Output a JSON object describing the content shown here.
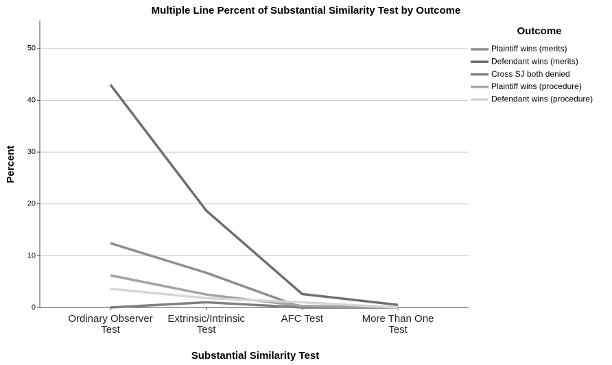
{
  "chart_data": {
    "type": "line",
    "title": "Multiple Line Percent of Substantial Similarity Test by Outcome",
    "x_label": "Substantial Similarity Test",
    "y_label": "Percent",
    "categories": [
      "Ordinary Observer Test",
      "Extrinsic/Intrinsic Test",
      "AFC Test",
      "More Than One Test"
    ],
    "series": [
      {
        "name": "Plaintiff wins (merits)",
        "color": "#8e8e8e",
        "values": [
          12.4,
          6.7,
          0,
          0
        ]
      },
      {
        "name": "Defendant wins (merits)",
        "color": "#6e6e6e",
        "values": [
          43,
          18.7,
          2.6,
          0.5
        ]
      },
      {
        "name": "Cross SJ both denied",
        "color": "#7f7f7f",
        "values": [
          0,
          1.0,
          0,
          0
        ]
      },
      {
        "name": "Plaintiff wins (procedure)",
        "color": "#a3a3a3",
        "values": [
          6.2,
          2.5,
          0.3,
          0
        ]
      },
      {
        "name": "Defendant wins (procedure)",
        "color": "#d6d6d6",
        "values": [
          3.6,
          1.8,
          1.0,
          0
        ]
      }
    ],
    "legend_title": "Outcome",
    "legend_position": "right",
    "ylim": [
      0,
      55
    ],
    "yticks": [
      0,
      10,
      20,
      30,
      40,
      50
    ],
    "grid": true
  }
}
